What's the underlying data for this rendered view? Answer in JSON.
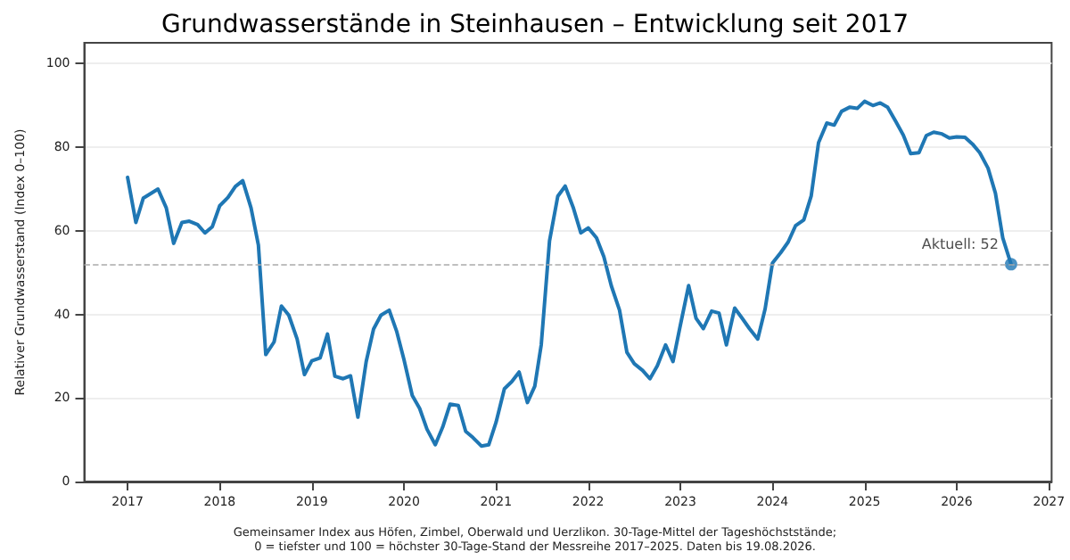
{
  "chart_data": {
    "type": "line",
    "title": "Grundwasserstände in Steinhausen – Entwicklung seit 2017",
    "ylabel": "Relativer Grundwasserstand (Index 0–100)",
    "annotations": [
      {
        "text": "Aktuell: 52",
        "x": 2026.59,
        "y": 52
      },
      "Gemeinsamer Index aus Höfen, Zimbel, Oberwald und Uerzlikon. 30-Tage-Mittel der Tageshöchststände;",
      "0 = tiefster und 100 = höchster 30-Tage-Stand der Messreihe 2017–2025. Daten bis 19.08.2026."
    ],
    "series": [
      {
        "color": "#1f77b4",
        "x": [
          2017.0,
          2017.09,
          2017.17,
          2017.33,
          2017.42,
          2017.5,
          2017.59,
          2017.67,
          2017.76,
          2017.84,
          2017.92,
          2018.0,
          2018.09,
          2018.17,
          2018.25,
          2018.34,
          2018.42,
          2018.5,
          2018.59,
          2018.67,
          2018.75,
          2018.84,
          2018.92,
          2019.0,
          2019.09,
          2019.17,
          2019.25,
          2019.34,
          2019.42,
          2019.5,
          2019.59,
          2019.67,
          2019.75,
          2019.84,
          2019.92,
          2020.0,
          2020.09,
          2020.17,
          2020.25,
          2020.34,
          2020.42,
          2020.5,
          2020.59,
          2020.67,
          2020.75,
          2020.84,
          2020.92,
          2021.0,
          2021.09,
          2021.17,
          2021.25,
          2021.34,
          2021.42,
          2021.49,
          2021.58,
          2021.67,
          2021.75,
          2021.84,
          2021.92,
          2022.0,
          2022.09,
          2022.17,
          2022.25,
          2022.34,
          2022.42,
          2022.5,
          2022.59,
          2022.67,
          2022.75,
          2022.84,
          2022.92,
          2023.0,
          2023.09,
          2023.17,
          2023.25,
          2023.34,
          2023.42,
          2023.5,
          2023.59,
          2023.67,
          2023.75,
          2023.84,
          2023.92,
          2024.0,
          2024.09,
          2024.17,
          2024.25,
          2024.34,
          2024.42,
          2024.5,
          2024.59,
          2024.67,
          2024.75,
          2024.84,
          2024.92,
          2025.0,
          2025.09,
          2025.17,
          2025.25,
          2025.34,
          2025.42,
          2025.5,
          2025.59,
          2025.67,
          2025.75,
          2025.84,
          2025.92,
          2026.0,
          2026.09,
          2026.17,
          2026.25,
          2026.34,
          2026.42,
          2026.5,
          2026.59
        ],
        "values": [
          72.8,
          62,
          67.8,
          70,
          65.5,
          57,
          62,
          62.3,
          61.5,
          59.5,
          61,
          66,
          68,
          70.6,
          72,
          65.5,
          56.6,
          30.4,
          33.4,
          42,
          39.8,
          34.1,
          25.6,
          28.9,
          29.6,
          35.3,
          25.2,
          24.6,
          25.3,
          15.4,
          28.7,
          36.5,
          39.8,
          41,
          36,
          29.2,
          20.6,
          17.5,
          12.5,
          8.8,
          13,
          18.5,
          18.2,
          12,
          10.5,
          8.5,
          8.8,
          14.2,
          22.2,
          23.9,
          26.2,
          18.9,
          22.8,
          32.7,
          57.6,
          68.3,
          70.7,
          65.4,
          59.5,
          60.7,
          58.3,
          53.8,
          46.9,
          41,
          30.9,
          28.2,
          26.6,
          24.6,
          27.7,
          32.7,
          28.7,
          37.4,
          46.9,
          39.1,
          36.6,
          40.8,
          40.3,
          32.7,
          41.5,
          39.1,
          36.6,
          34.1,
          41.3,
          52.3,
          54.8,
          57.3,
          61.2,
          62.6,
          68.3,
          81.1,
          85.8,
          85.3,
          88.6,
          89.6,
          89.3,
          91,
          90,
          90.6,
          89.6,
          86.1,
          82.9,
          78.5,
          78.7,
          82.8,
          83.6,
          83.2,
          82.2,
          82.5,
          82.4,
          80.8,
          78.7,
          75,
          69,
          58.3,
          52
        ]
      },
      {
        "type": "scatter",
        "color": "#1f77b4",
        "marker": "circle",
        "x": [
          2026.59
        ],
        "values": [
          52
        ]
      }
    ],
    "ref_lines": [
      {
        "axis": "y",
        "value": 52,
        "color": "#aaaaaa",
        "line_style": "dashed"
      }
    ],
    "xlim": [
      2016.53,
      2027.03
    ],
    "xticks": [
      2017,
      2018,
      2019,
      2020,
      2021,
      2022,
      2023,
      2024,
      2025,
      2026,
      2027
    ],
    "ylim": [
      0,
      105
    ],
    "yticks": [
      0,
      20,
      40,
      60,
      80,
      100
    ],
    "grid": "y",
    "marker": "none",
    "line_style": "solid"
  }
}
